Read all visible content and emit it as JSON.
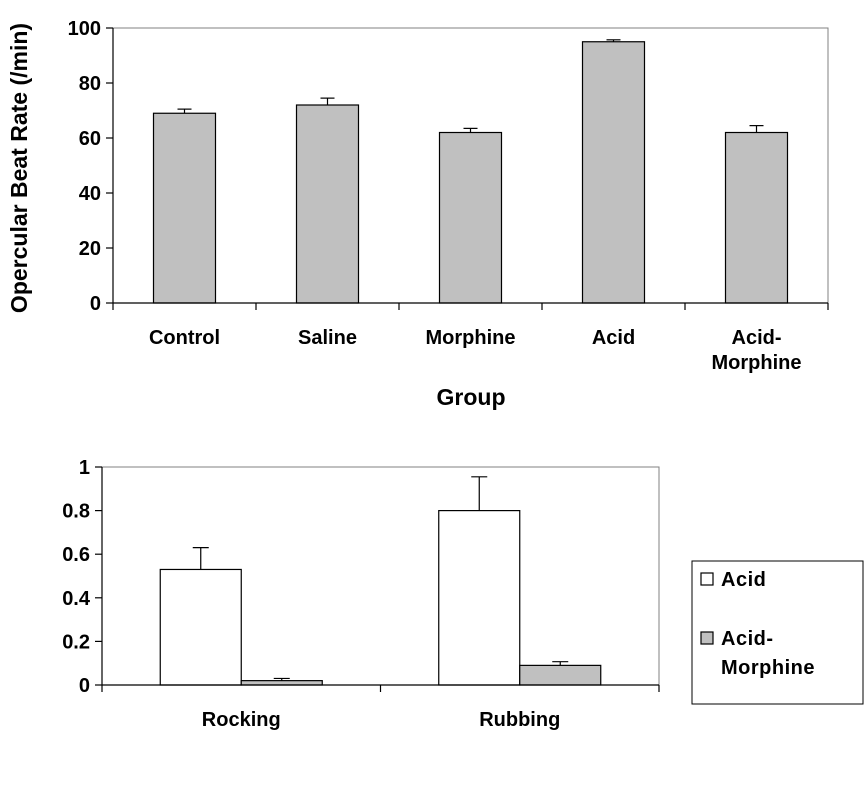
{
  "chart_data": [
    {
      "type": "bar",
      "categories": [
        "Control",
        "Saline",
        "Morphine",
        "Acid",
        "Acid-Morphine"
      ],
      "category_labels": [
        [
          "Control"
        ],
        [
          "Saline"
        ],
        [
          "Morphine"
        ],
        [
          "Acid"
        ],
        [
          "Acid-",
          "Morphine"
        ]
      ],
      "values": [
        69,
        72,
        62,
        95,
        62
      ],
      "errors": [
        1.5,
        2.5,
        1.5,
        0.7,
        2.5
      ],
      "xlabel": "Group",
      "ylabel": "Opercular Beat Rate (/min)",
      "ylim": [
        0,
        100
      ],
      "yticks": [
        0,
        20,
        40,
        60,
        80,
        100
      ],
      "grid": false,
      "bar_color": "#c0c0c0"
    },
    {
      "type": "bar",
      "categories": [
        "Rocking",
        "Rubbing"
      ],
      "series": [
        {
          "name": "Acid",
          "values": [
            0.53,
            0.8
          ],
          "errors": [
            0.1,
            0.155
          ],
          "color": "#ffffff",
          "legend_lines": [
            "Acid"
          ]
        },
        {
          "name": "Acid-Morphine",
          "values": [
            0.02,
            0.09
          ],
          "errors": [
            0.01,
            0.017
          ],
          "color": "#c0c0c0",
          "legend_lines": [
            "Acid-",
            "Morphine"
          ]
        }
      ],
      "ylim": [
        0,
        1
      ],
      "yticks": [
        "0",
        "0.2",
        "0.4",
        "0.6",
        "0.8",
        "1"
      ],
      "grid": false,
      "legend_position": "right"
    }
  ]
}
